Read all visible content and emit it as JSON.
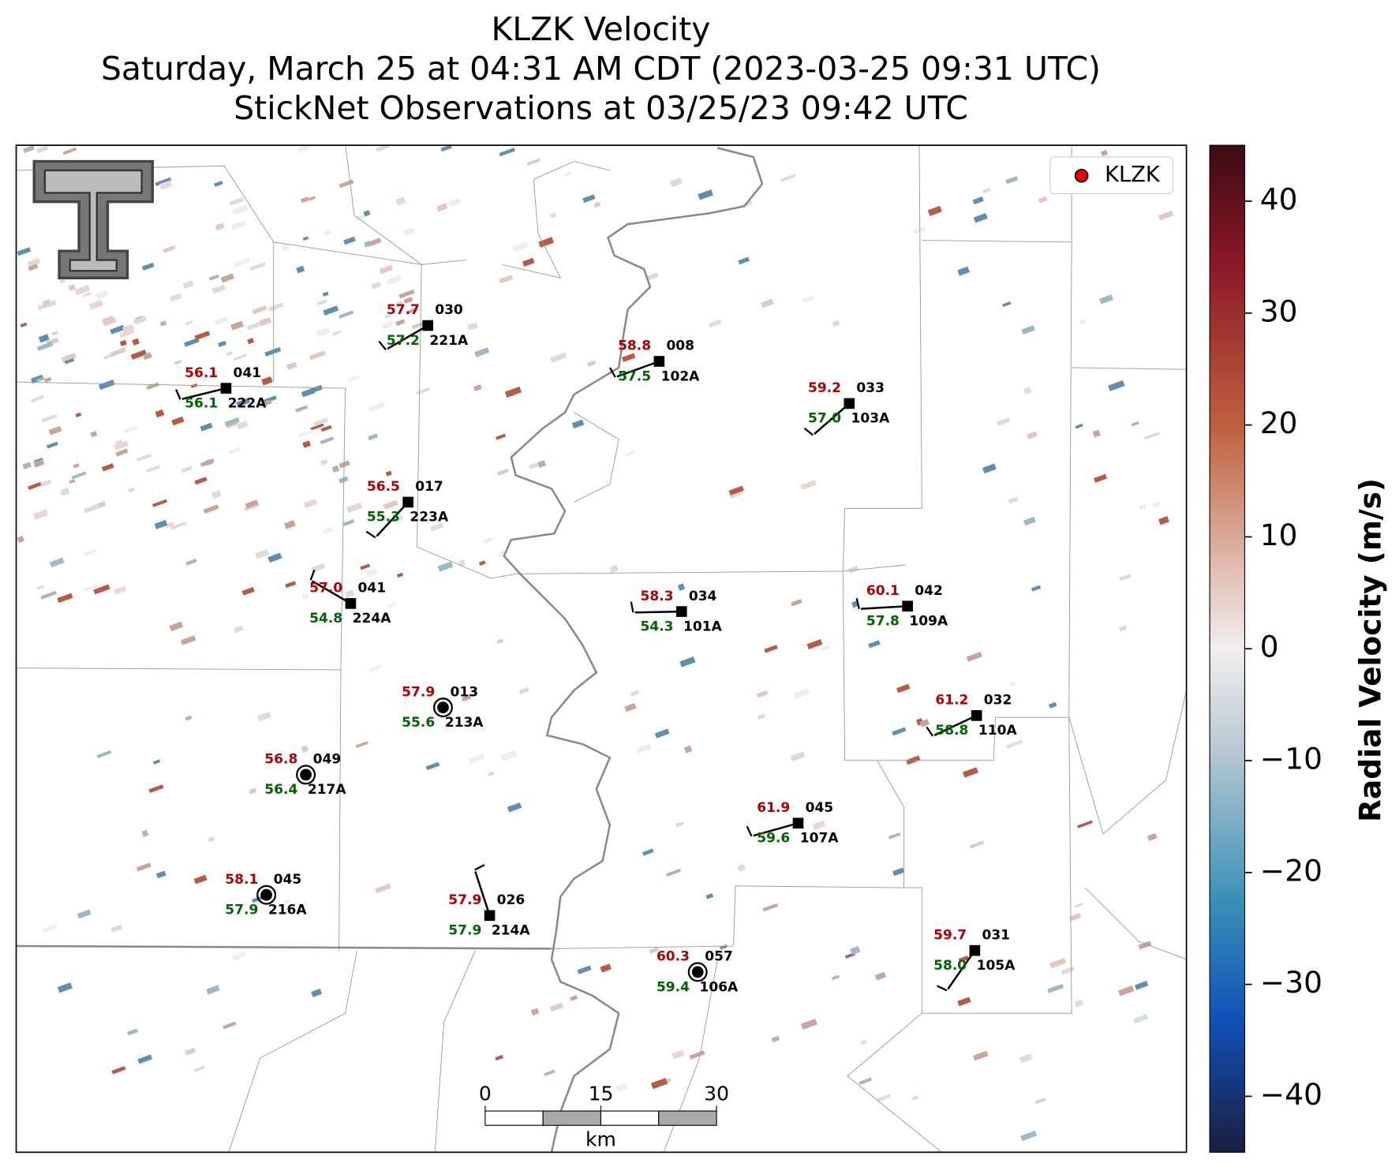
{
  "title": [
    "KLZK Velocity",
    "Saturday, March 25 at 04:31 AM CDT (2023-03-25 09:31 UTC)",
    "StickNet Observations at 03/25/23 09:42 UTC"
  ],
  "legend": "KLZK",
  "stations": [
    {
      "temp": "56.1",
      "dew": "56.1",
      "value": "041",
      "id": "222A"
    },
    {
      "temp": "57.7",
      "dew": "57.2",
      "value": "030",
      "id": "221A"
    },
    {
      "temp": "58.8",
      "dew": "57.5",
      "value": "008",
      "id": "102A"
    },
    {
      "temp": "59.2",
      "dew": "57.0",
      "value": "033",
      "id": "103A"
    },
    {
      "temp": "56.5",
      "dew": "55.3",
      "value": "017",
      "id": "223A"
    },
    {
      "temp": "57.0",
      "dew": "54.8",
      "value": "041",
      "id": "224A"
    },
    {
      "temp": "58.3",
      "dew": "54.3",
      "value": "034",
      "id": "101A"
    },
    {
      "temp": "60.1",
      "dew": "57.8",
      "value": "042",
      "id": "109A"
    },
    {
      "temp": "57.9",
      "dew": "55.6",
      "value": "013",
      "id": "213A"
    },
    {
      "temp": "61.2",
      "dew": "58.8",
      "value": "032",
      "id": "110A"
    },
    {
      "temp": "56.8",
      "dew": "56.4",
      "value": "049",
      "id": "217A"
    },
    {
      "temp": "61.9",
      "dew": "59.6",
      "value": "045",
      "id": "107A"
    },
    {
      "temp": "58.1",
      "dew": "57.9",
      "value": "045",
      "id": "216A"
    },
    {
      "temp": "57.9",
      "dew": "57.9",
      "value": "026",
      "id": "214A"
    },
    {
      "temp": "59.7",
      "dew": "58.0",
      "value": "031",
      "id": "105A"
    },
    {
      "temp": "60.3",
      "dew": "59.4",
      "value": "057",
      "id": "106A"
    }
  ],
  "colorbar": {
    "label": "Radial Velocity (m/s)",
    "lim": [
      -45,
      45
    ],
    "ticks": [
      {
        "value": -40,
        "label": "−40"
      },
      {
        "value": -30,
        "label": "−30"
      },
      {
        "value": -20,
        "label": "−20"
      },
      {
        "value": -10,
        "label": "−10"
      },
      0,
      10,
      20,
      30,
      40
    ]
  },
  "scale_bar": {
    "ticks": [
      0,
      15,
      30
    ],
    "lim": [
      0,
      30
    ],
    "unit": "km"
  }
}
